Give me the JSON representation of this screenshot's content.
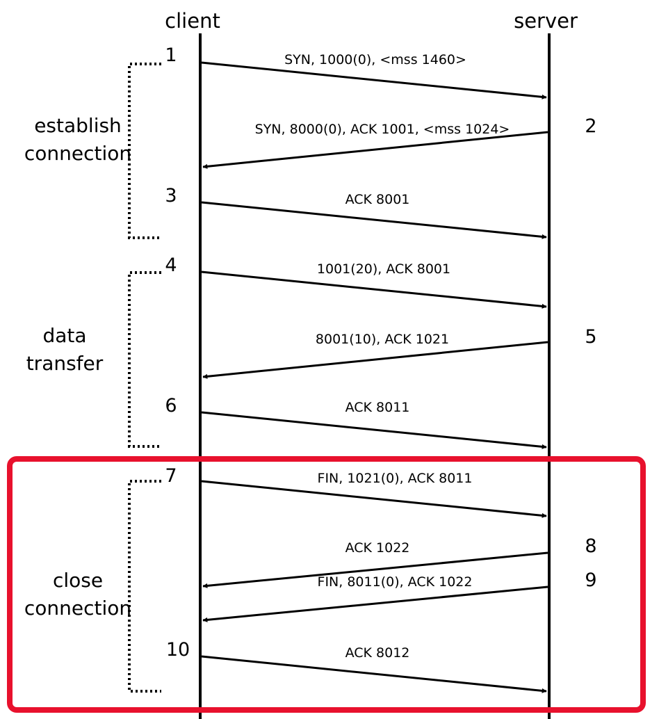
{
  "participants": {
    "client": "client",
    "server": "server"
  },
  "messages": [
    {
      "step": "1",
      "label": "SYN, 1000(0), <mss 1460>",
      "direction": "client-to-server"
    },
    {
      "step": "2",
      "label": "SYN, 8000(0), ACK 1001, <mss 1024>",
      "direction": "server-to-client"
    },
    {
      "step": "3",
      "label": "ACK 8001",
      "direction": "client-to-server"
    },
    {
      "step": "4",
      "label": "1001(20), ACK 8001",
      "direction": "client-to-server"
    },
    {
      "step": "5",
      "label": "8001(10), ACK 1021",
      "direction": "server-to-client"
    },
    {
      "step": "6",
      "label": "ACK 8011",
      "direction": "client-to-server"
    },
    {
      "step": "7",
      "label": "FIN, 1021(0), ACK 8011",
      "direction": "client-to-server"
    },
    {
      "step": "8",
      "label": "ACK 1022",
      "direction": "server-to-client"
    },
    {
      "step": "9",
      "label": "FIN, 8011(0), ACK 1022",
      "direction": "server-to-client"
    },
    {
      "step": "10",
      "label": "ACK 8012",
      "direction": "client-to-server"
    }
  ],
  "phases": [
    {
      "lines": [
        "establish",
        "connection"
      ]
    },
    {
      "lines": [
        "data",
        "transfer"
      ]
    },
    {
      "lines": [
        "close",
        "connection"
      ]
    }
  ],
  "highlight_color": "#e8112d"
}
